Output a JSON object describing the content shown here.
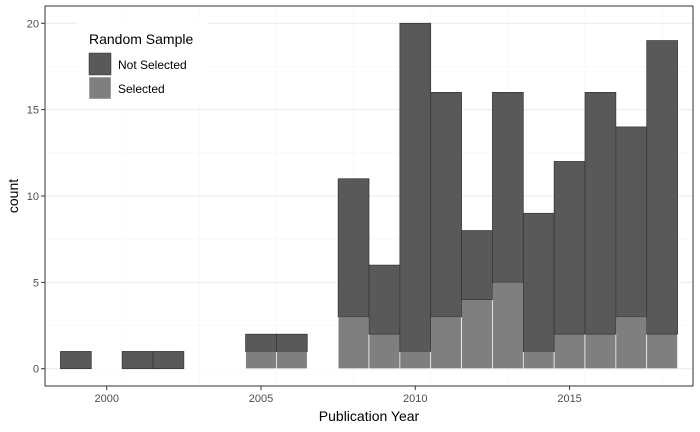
{
  "chart_data": {
    "type": "bar",
    "stacked": true,
    "x": [
      1999,
      2000,
      2001,
      2002,
      2003,
      2004,
      2005,
      2006,
      2007,
      2008,
      2009,
      2010,
      2011,
      2012,
      2013,
      2014,
      2015,
      2016,
      2017,
      2018
    ],
    "series": [
      {
        "name": "Not Selected",
        "color": "#595959",
        "values": [
          1,
          0,
          1,
          1,
          0,
          0,
          1,
          1,
          0,
          8,
          4,
          19,
          13,
          4,
          11,
          8,
          10,
          14,
          11,
          17
        ]
      },
      {
        "name": "Selected",
        "color": "#7f7f7f",
        "values": [
          0,
          0,
          0,
          0,
          0,
          0,
          1,
          1,
          0,
          3,
          2,
          1,
          3,
          4,
          5,
          1,
          2,
          2,
          3,
          2
        ]
      }
    ],
    "xlabel": "Publication Year",
    "ylabel": "count",
    "xticks": [
      2000,
      2005,
      2010,
      2015
    ],
    "yticks": [
      0,
      5,
      10,
      15,
      20
    ],
    "xlim": [
      1998,
      2019
    ],
    "ylim": [
      -1,
      21
    ],
    "legend": {
      "title": "Random Sample",
      "position": "top-left"
    },
    "grid": true
  }
}
